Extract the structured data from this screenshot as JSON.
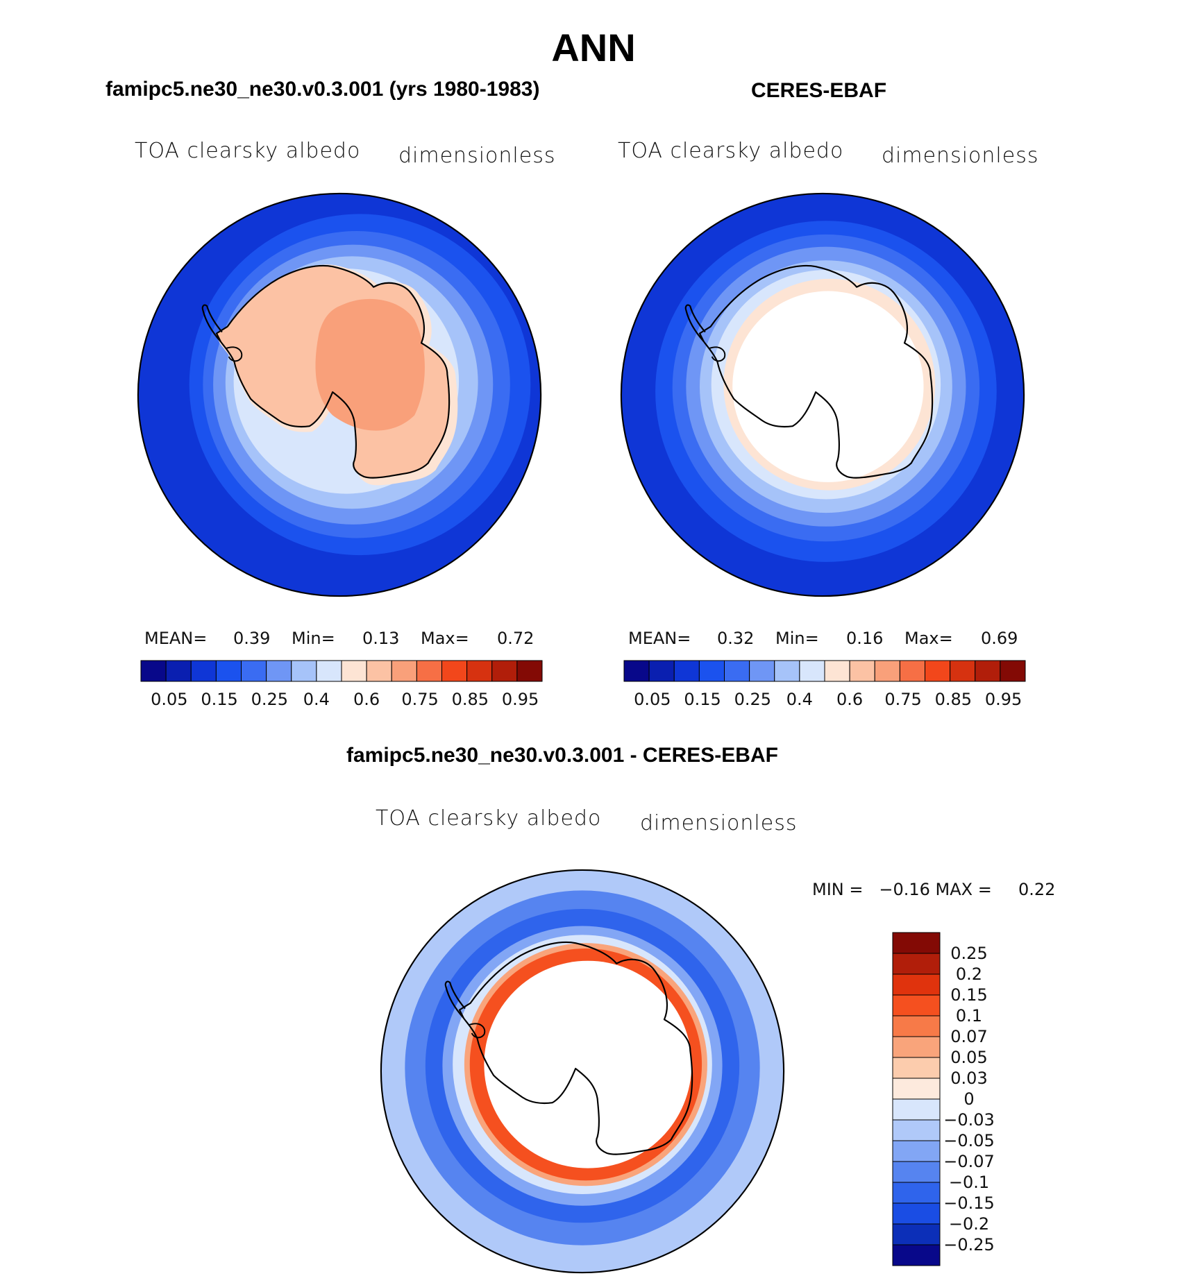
{
  "title": "ANN",
  "palette_full": [
    "#08088a",
    "#0a1fb0",
    "#0f36d6",
    "#1b52ee",
    "#3a6cf2",
    "#6f96f5",
    "#a6c3f9",
    "#d8e6fc",
    "#fde4d4",
    "#fcc2a4",
    "#f9a07a",
    "#f66f45",
    "#f2471b",
    "#d63210",
    "#b11e0a",
    "#830a05"
  ],
  "diff_palette": [
    "#830a05",
    "#b11e0a",
    "#e0330d",
    "#f5501f",
    "#f77a48",
    "#f9a47b",
    "#fcccad",
    "#fdeadd",
    "#d8e6fc",
    "#b0c9f9",
    "#82a6f5",
    "#5684f0",
    "#2f64ec",
    "#1a4de4",
    "#0c2fb8",
    "#08088a"
  ],
  "panels": [
    {
      "title": "famipc5.ne30_ne30.v0.3.001 (yrs 1980-1983)",
      "variable": "TOA clearsky albedo",
      "units": "dimensionless",
      "mean_label": "MEAN=",
      "mean": "0.39",
      "min_label": "Min=",
      "min": "0.13",
      "max_label": "Max=",
      "max": "0.72",
      "ticks": [
        "0.05",
        "0.15",
        "0.25",
        "0.4",
        "0.6",
        "0.75",
        "0.85",
        "0.95"
      ]
    },
    {
      "title": "CERES-EBAF",
      "variable": "TOA clearsky albedo",
      "units": "dimensionless",
      "mean_label": "MEAN=",
      "mean": "0.32",
      "min_label": "Min=",
      "min": "0.16",
      "max_label": "Max=",
      "max": "0.69",
      "ticks": [
        "0.05",
        "0.15",
        "0.25",
        "0.4",
        "0.6",
        "0.75",
        "0.85",
        "0.95"
      ]
    }
  ],
  "diff": {
    "title": "famipc5.ne30_ne30.v0.3.001 - CERES-EBAF",
    "variable": "TOA clearsky albedo",
    "units": "dimensionless",
    "range_text": "MIN =   −0.16 MAX =     0.22",
    "ticks": [
      "0.25",
      "0.2",
      "0.15",
      "0.1",
      "0.07",
      "0.05",
      "0.03",
      "0",
      "−0.03",
      "−0.05",
      "−0.07",
      "−0.1",
      "−0.15",
      "−0.2",
      "−0.25"
    ]
  },
  "chart_data": [
    {
      "type": "heatmap",
      "title": "famipc5.ne30_ne30.v0.3.001 (yrs 1980-1983)",
      "projection": "south polar stereographic",
      "variable": "TOA clearsky albedo",
      "units": "dimensionless",
      "mean": 0.39,
      "min": 0.13,
      "max": 0.72,
      "levels": [
        0.05,
        0.1,
        0.15,
        0.2,
        0.25,
        0.3,
        0.4,
        0.5,
        0.6,
        0.7,
        0.75,
        0.8,
        0.85,
        0.9,
        0.95
      ]
    },
    {
      "type": "heatmap",
      "title": "CERES-EBAF",
      "projection": "south polar stereographic",
      "variable": "TOA clearsky albedo",
      "units": "dimensionless",
      "mean": 0.32,
      "min": 0.16,
      "max": 0.69,
      "levels": [
        0.05,
        0.1,
        0.15,
        0.2,
        0.25,
        0.3,
        0.4,
        0.5,
        0.6,
        0.7,
        0.75,
        0.8,
        0.85,
        0.9,
        0.95
      ]
    },
    {
      "type": "heatmap",
      "title": "famipc5.ne30_ne30.v0.3.001 - CERES-EBAF",
      "projection": "south polar stereographic",
      "variable": "TOA clearsky albedo",
      "units": "dimensionless",
      "min": -0.16,
      "max": 0.22,
      "levels": [
        0.25,
        0.2,
        0.15,
        0.1,
        0.07,
        0.05,
        0.03,
        0,
        -0.03,
        -0.05,
        -0.07,
        -0.1,
        -0.15,
        -0.2,
        -0.25
      ]
    }
  ]
}
